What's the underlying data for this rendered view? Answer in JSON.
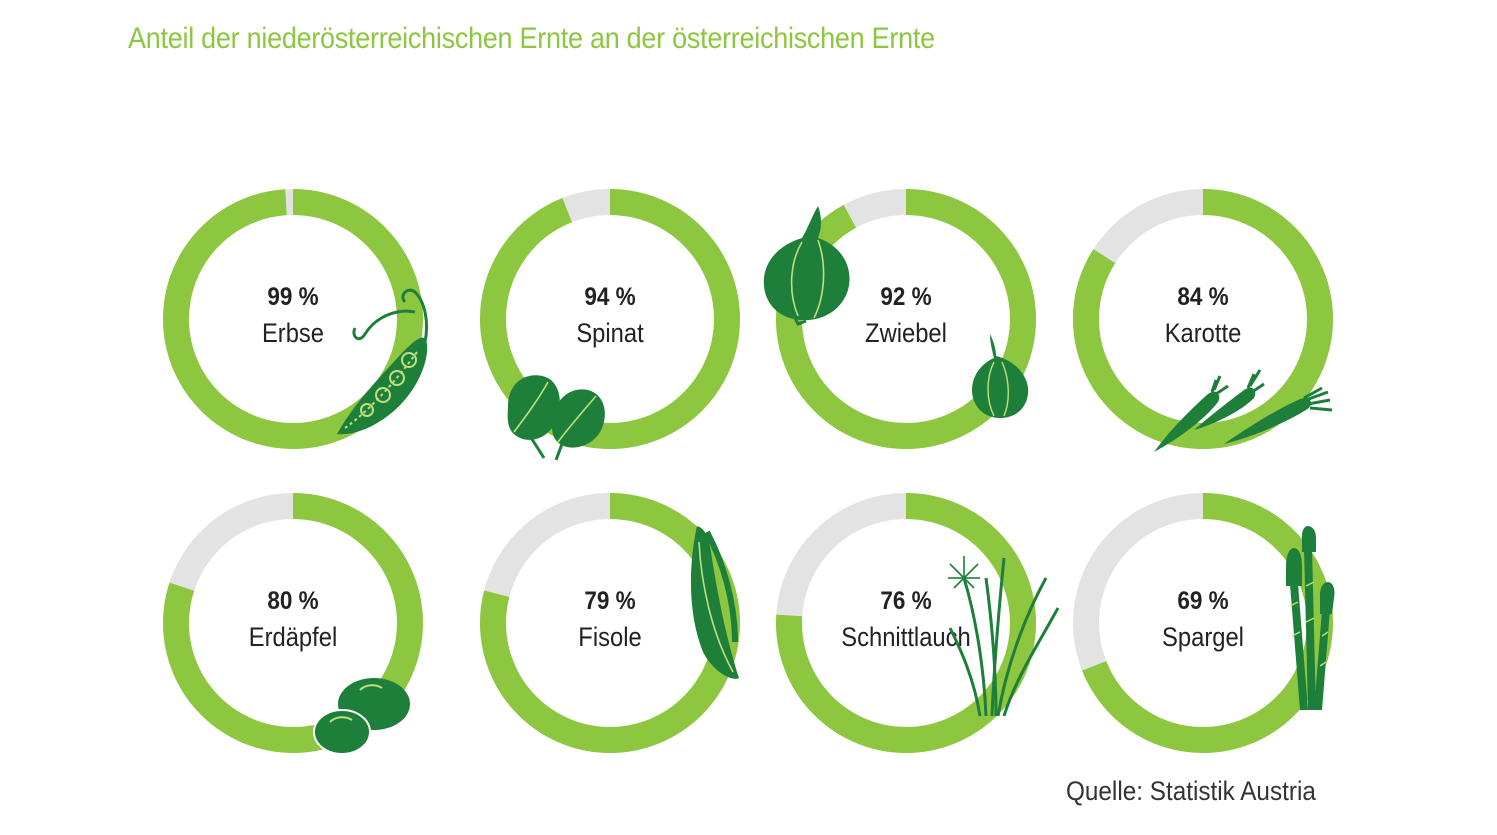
{
  "title": "Anteil der niederösterreichischen Ernte an der österreichischen Ernte",
  "source": "Quelle: Statistik Austria",
  "colors": {
    "accent": "#8dc63f",
    "track": "#e3e3e3",
    "icon_dark": "#1e7f3a",
    "icon_line": "#bfe07a"
  },
  "chart_data": {
    "type": "donut",
    "title": "Anteil der niederösterreichischen Ernte an der österreichischen Ernte",
    "unit": "%",
    "items": [
      {
        "label": "Erbse",
        "value": 99,
        "value_label": "99 %",
        "icon": "pea-pod-icon"
      },
      {
        "label": "Spinat",
        "value": 94,
        "value_label": "94 %",
        "icon": "spinach-icon"
      },
      {
        "label": "Zwiebel",
        "value": 92,
        "value_label": "92 %",
        "icon": "onion-icon"
      },
      {
        "label": "Karotte",
        "value": 84,
        "value_label": "84 %",
        "icon": "carrot-icon"
      },
      {
        "label": "Erdäpfel",
        "value": 80,
        "value_label": "80 %",
        "icon": "potato-icon"
      },
      {
        "label": "Fisole",
        "value": 79,
        "value_label": "79 %",
        "icon": "green-bean-icon"
      },
      {
        "label": "Schnittlauch",
        "value": 76,
        "value_label": "76 %",
        "icon": "chives-icon"
      },
      {
        "label": "Spargel",
        "value": 69,
        "value_label": "69 %",
        "icon": "asparagus-icon"
      }
    ]
  }
}
